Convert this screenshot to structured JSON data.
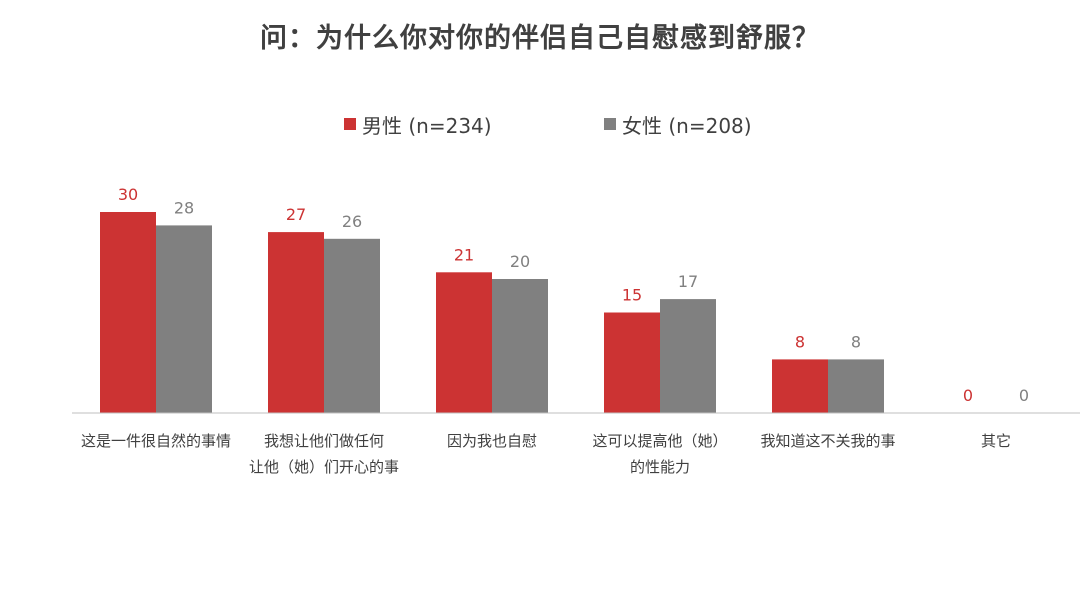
{
  "chart_data": {
    "type": "bar",
    "title": "问：为什么你对你的伴侣自己自慰感到舒服？",
    "categories": [
      [
        "这是一件很自然的事情"
      ],
      [
        "我想让他们做任何",
        "让他（她）们开心的事"
      ],
      [
        "因为我也自慰"
      ],
      [
        "这可以提高他（她）",
        "的性能力"
      ],
      [
        "我知道这不关我的事"
      ],
      [
        "其它"
      ]
    ],
    "series": [
      {
        "name": "男性 (n=234)",
        "color": "#cc3333",
        "values": [
          30,
          27,
          21,
          15,
          8,
          0
        ]
      },
      {
        "name": "女性 (n=208)",
        "color": "#808080",
        "values": [
          28,
          26,
          20,
          17,
          8,
          0
        ]
      }
    ],
    "ylim": [
      0,
      30
    ],
    "grid": false,
    "legend_position": "top-center",
    "baseline_color": "#bfbfbf"
  }
}
